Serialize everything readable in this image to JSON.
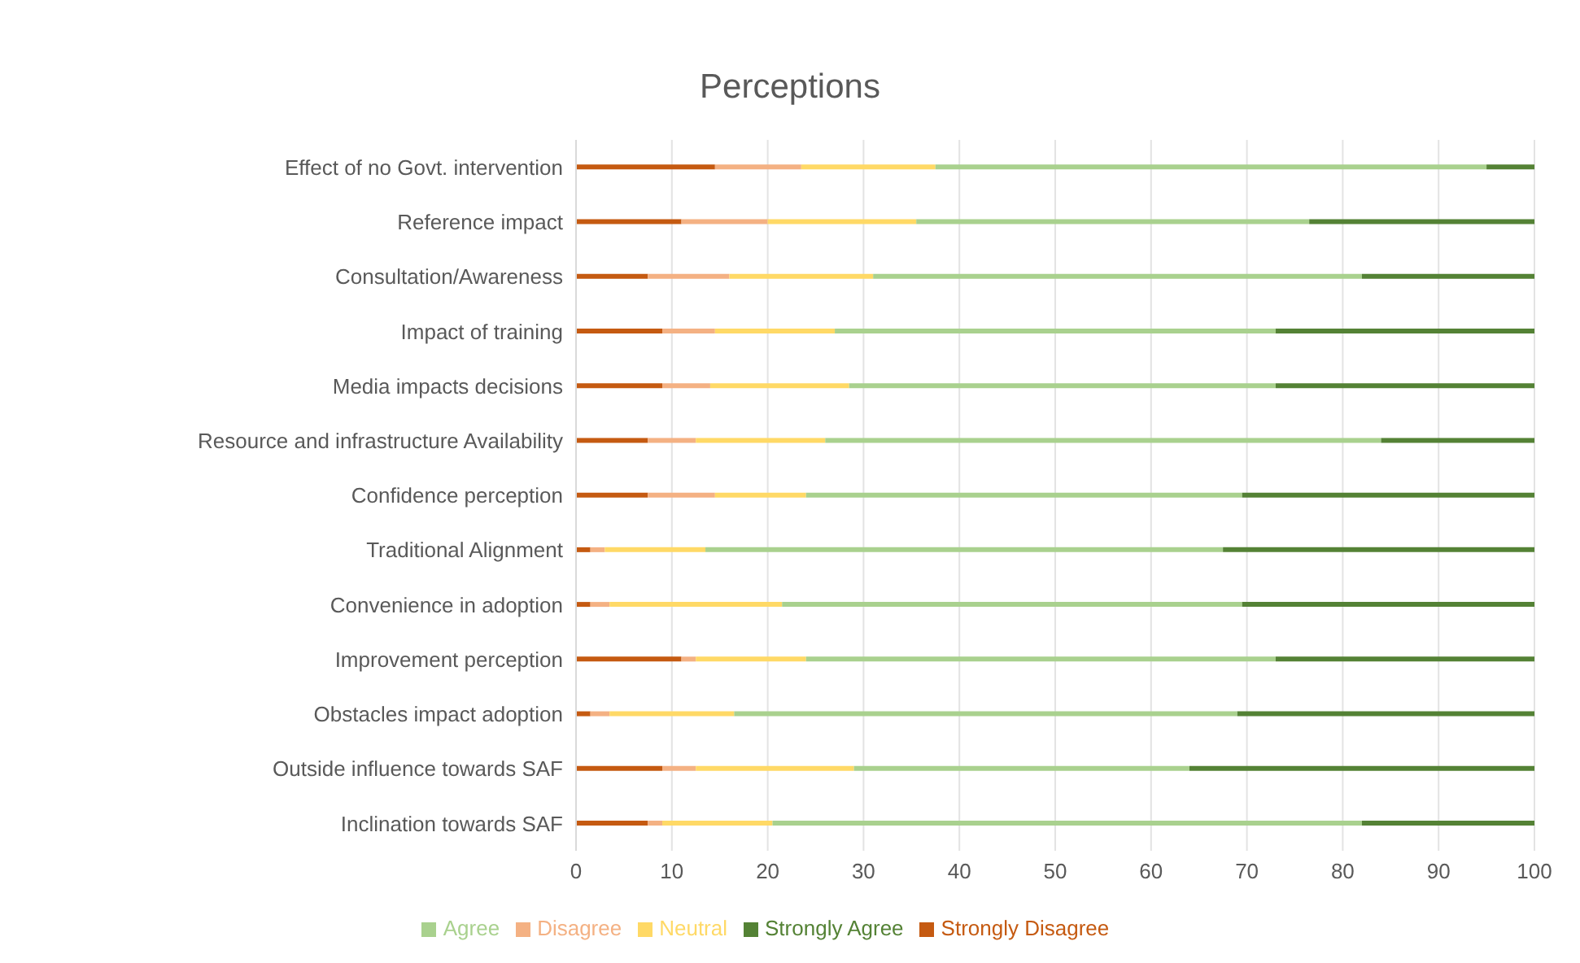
{
  "chart_data": {
    "type": "bar",
    "orientation": "horizontal",
    "stacked": true,
    "title": "Perceptions",
    "categories": [
      "Effect of no Govt. intervention",
      "Reference impact",
      "Consultation/Awareness",
      "Impact of training",
      "Media impacts decisions",
      "Resource and infrastructure Availability",
      "Confidence perception",
      "Traditional Alignment",
      "Convenience in adoption",
      "Improvement perception",
      "Obstacles impact adoption",
      "Outside influence towards SAF",
      "Inclination towards SAF"
    ],
    "series": [
      {
        "name": "Strongly Disagree",
        "color": "#c55a11",
        "values": [
          14.5,
          11,
          7.5,
          9,
          9,
          7.5,
          7.5,
          1.5,
          1.5,
          11,
          1.5,
          9,
          7.5
        ]
      },
      {
        "name": "Disagree",
        "color": "#f4b183",
        "values": [
          9,
          9,
          8.5,
          5.5,
          5,
          5,
          7,
          1.5,
          2,
          1.5,
          2,
          3.5,
          1.5
        ]
      },
      {
        "name": "Neutral",
        "color": "#ffd966",
        "values": [
          14,
          15.5,
          15,
          12.5,
          14.5,
          13.5,
          9.5,
          10.5,
          18,
          11.5,
          13,
          16.5,
          11.5
        ]
      },
      {
        "name": "Agree",
        "color": "#a9d18e",
        "values": [
          57.5,
          41,
          51,
          46,
          44.5,
          58,
          45.5,
          54,
          48,
          49,
          52.5,
          35,
          61.5
        ]
      },
      {
        "name": "Strongly Agree",
        "color": "#548235",
        "values": [
          5,
          23.5,
          18,
          27,
          27,
          16,
          30.5,
          32.5,
          30.5,
          27,
          31,
          36,
          18
        ]
      }
    ],
    "xlim": [
      0,
      100
    ],
    "xticks": [
      0,
      10,
      20,
      30,
      40,
      50,
      60,
      70,
      80,
      90,
      100
    ],
    "grid": "x",
    "legend": "bottom"
  }
}
